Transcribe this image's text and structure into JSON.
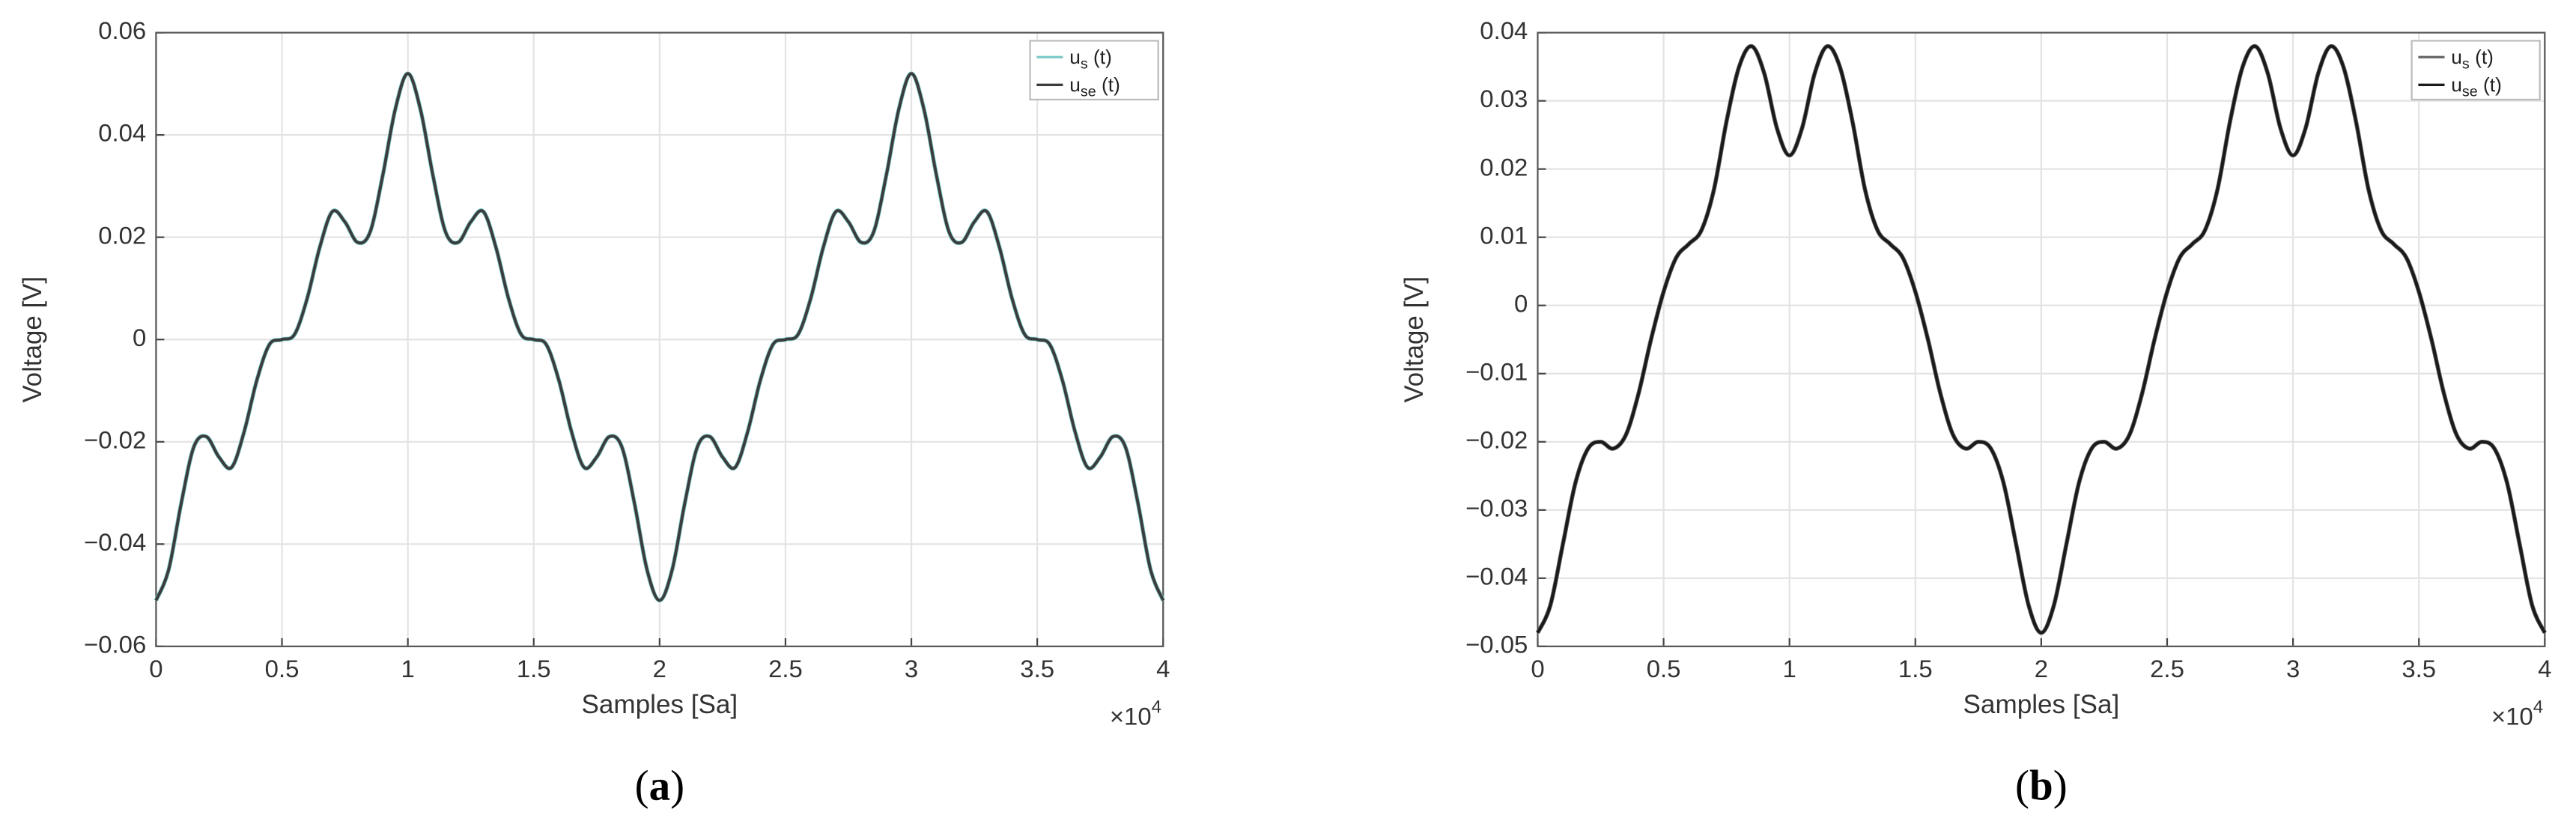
{
  "chart_data": [
    {
      "type": "line",
      "panel_label": "(a)",
      "xlabel": "Samples [Sa]",
      "ylabel": "Voltage [V]",
      "x_multiplier": "×104",
      "x": [
        0,
        500,
        1000,
        1500,
        2000,
        2500,
        3000,
        3500,
        4000,
        4500,
        5000,
        5500,
        6000,
        6500,
        7000,
        7500,
        8000,
        8500,
        9000,
        9500,
        10000,
        10500,
        11000,
        11500,
        12000,
        12500,
        13000,
        13500,
        14000,
        14500,
        15000,
        15500,
        16000,
        16500,
        17000,
        17500,
        18000,
        18500,
        19000,
        19500,
        20000,
        20500,
        21000,
        21500,
        22000,
        22500,
        23000,
        23500,
        24000,
        24500,
        25000,
        25500,
        26000,
        26500,
        27000,
        27500,
        28000,
        28500,
        29000,
        29500,
        30000,
        30500,
        31000,
        31500,
        32000,
        32500,
        33000,
        33500,
        34000,
        34500,
        35000,
        35500,
        36000,
        36500,
        37000,
        37500,
        38000,
        38500,
        39000,
        39500,
        40000
      ],
      "series": [
        {
          "name": "us (t)",
          "color": "#7cc8c8",
          "values": [
            -0.051,
            -0.045,
            -0.032,
            -0.021,
            -0.019,
            -0.023,
            -0.025,
            -0.018,
            -0.008,
            -0.001,
            0,
            0.001,
            0.008,
            0.018,
            0.025,
            0.023,
            0.019,
            0.021,
            0.032,
            0.045,
            0.052,
            0.045,
            0.032,
            0.021,
            0.019,
            0.023,
            0.025,
            0.018,
            0.008,
            0.001,
            0,
            -0.001,
            -0.008,
            -0.018,
            -0.025,
            -0.023,
            -0.019,
            -0.021,
            -0.032,
            -0.045,
            -0.051,
            -0.045,
            -0.032,
            -0.021,
            -0.019,
            -0.023,
            -0.025,
            -0.018,
            -0.008,
            -0.001,
            0,
            0.001,
            0.008,
            0.018,
            0.025,
            0.023,
            0.019,
            0.021,
            0.032,
            0.045,
            0.052,
            0.045,
            0.032,
            0.021,
            0.019,
            0.023,
            0.025,
            0.018,
            0.008,
            0.001,
            0,
            -0.001,
            -0.008,
            -0.018,
            -0.025,
            -0.023,
            -0.019,
            -0.021,
            -0.032,
            -0.045,
            -0.051
          ]
        },
        {
          "name": "use (t)",
          "color": "#3c3c3c",
          "values": [
            -0.051,
            -0.045,
            -0.032,
            -0.021,
            -0.019,
            -0.023,
            -0.025,
            -0.018,
            -0.008,
            -0.001,
            0,
            0.001,
            0.008,
            0.018,
            0.025,
            0.023,
            0.019,
            0.021,
            0.032,
            0.045,
            0.052,
            0.045,
            0.032,
            0.021,
            0.019,
            0.023,
            0.025,
            0.018,
            0.008,
            0.001,
            0,
            -0.001,
            -0.008,
            -0.018,
            -0.025,
            -0.023,
            -0.019,
            -0.021,
            -0.032,
            -0.045,
            -0.051,
            -0.045,
            -0.032,
            -0.021,
            -0.019,
            -0.023,
            -0.025,
            -0.018,
            -0.008,
            -0.001,
            0,
            0.001,
            0.008,
            0.018,
            0.025,
            0.023,
            0.019,
            0.021,
            0.032,
            0.045,
            0.052,
            0.045,
            0.032,
            0.021,
            0.019,
            0.023,
            0.025,
            0.018,
            0.008,
            0.001,
            0,
            -0.001,
            -0.008,
            -0.018,
            -0.025,
            -0.023,
            -0.019,
            -0.021,
            -0.032,
            -0.045,
            -0.051
          ]
        }
      ],
      "xlim": [
        0,
        40000
      ],
      "xticks": [
        0,
        {
          "value": 5000,
          "label": "0.5"
        },
        {
          "value": 10000,
          "label": "1"
        },
        {
          "value": 15000,
          "label": "1.5"
        },
        {
          "value": 20000,
          "label": "2"
        },
        {
          "value": 25000,
          "label": "2.5"
        },
        {
          "value": 30000,
          "label": "3"
        },
        {
          "value": 35000,
          "label": "3.5"
        },
        {
          "value": 40000,
          "label": "4"
        }
      ],
      "ylim": [
        -0.06,
        0.06
      ],
      "yticks": [
        {
          "value": -0.06,
          "label": "−0.06"
        },
        {
          "value": -0.04,
          "label": "−0.04"
        },
        {
          "value": -0.02,
          "label": "−0.02"
        },
        0,
        0.02,
        0.04,
        0.06
      ],
      "grid": true,
      "legend": "upper right"
    },
    {
      "type": "line",
      "panel_label": "(b)",
      "xlabel": "Samples [Sa]",
      "ylabel": "Voltage [V]",
      "x_multiplier": "×104",
      "x": [
        0,
        500,
        1000,
        1500,
        2000,
        2500,
        3000,
        3500,
        4000,
        4500,
        5000,
        5500,
        6000,
        6500,
        7000,
        7500,
        8000,
        8500,
        9000,
        9500,
        10000,
        10500,
        11000,
        11500,
        12000,
        12500,
        13000,
        13500,
        14000,
        14500,
        15000,
        15500,
        16000,
        16500,
        17000,
        17500,
        18000,
        18500,
        19000,
        19500,
        20000,
        20500,
        21000,
        21500,
        22000,
        22500,
        23000,
        23500,
        24000,
        24500,
        25000,
        25500,
        26000,
        26500,
        27000,
        27500,
        28000,
        28500,
        29000,
        29500,
        30000,
        30500,
        31000,
        31500,
        32000,
        32500,
        33000,
        33500,
        34000,
        34500,
        35000,
        35500,
        36000,
        36500,
        37000,
        37500,
        38000,
        38500,
        39000,
        39500,
        40000
      ],
      "series": [
        {
          "name": "us (t)",
          "color": "#666666",
          "values": [
            -0.048,
            -0.044,
            -0.035,
            -0.026,
            -0.021,
            -0.02,
            -0.021,
            -0.019,
            -0.013,
            -0.005,
            0.002,
            0.007,
            0.009,
            0.011,
            0.017,
            0.027,
            0.035,
            0.038,
            0.034,
            0.026,
            0.022,
            0.026,
            0.034,
            0.038,
            0.035,
            0.027,
            0.017,
            0.011,
            0.009,
            0.007,
            0.002,
            -0.005,
            -0.013,
            -0.019,
            -0.021,
            -0.02,
            -0.021,
            -0.026,
            -0.035,
            -0.044,
            -0.048,
            -0.044,
            -0.035,
            -0.026,
            -0.021,
            -0.02,
            -0.021,
            -0.019,
            -0.013,
            -0.005,
            0.002,
            0.007,
            0.009,
            0.011,
            0.017,
            0.027,
            0.035,
            0.038,
            0.034,
            0.026,
            0.022,
            0.026,
            0.034,
            0.038,
            0.035,
            0.027,
            0.017,
            0.011,
            0.009,
            0.007,
            0.002,
            -0.005,
            -0.013,
            -0.019,
            -0.021,
            -0.02,
            -0.021,
            -0.026,
            -0.035,
            -0.044,
            -0.048
          ]
        },
        {
          "name": "use (t)",
          "color": "#1a1a1a",
          "values": [
            -0.048,
            -0.044,
            -0.035,
            -0.026,
            -0.021,
            -0.02,
            -0.021,
            -0.019,
            -0.013,
            -0.005,
            0.002,
            0.007,
            0.009,
            0.011,
            0.017,
            0.027,
            0.035,
            0.038,
            0.034,
            0.026,
            0.022,
            0.026,
            0.034,
            0.038,
            0.035,
            0.027,
            0.017,
            0.011,
            0.009,
            0.007,
            0.002,
            -0.005,
            -0.013,
            -0.019,
            -0.021,
            -0.02,
            -0.021,
            -0.026,
            -0.035,
            -0.044,
            -0.048,
            -0.044,
            -0.035,
            -0.026,
            -0.021,
            -0.02,
            -0.021,
            -0.019,
            -0.013,
            -0.005,
            0.002,
            0.007,
            0.009,
            0.011,
            0.017,
            0.027,
            0.035,
            0.038,
            0.034,
            0.026,
            0.022,
            0.026,
            0.034,
            0.038,
            0.035,
            0.027,
            0.017,
            0.011,
            0.009,
            0.007,
            0.002,
            -0.005,
            -0.013,
            -0.019,
            -0.021,
            -0.02,
            -0.021,
            -0.026,
            -0.035,
            -0.044,
            -0.048
          ]
        }
      ],
      "xlim": [
        0,
        40000
      ],
      "xticks": [
        0,
        {
          "value": 5000,
          "label": "0.5"
        },
        {
          "value": 10000,
          "label": "1"
        },
        {
          "value": 15000,
          "label": "1.5"
        },
        {
          "value": 20000,
          "label": "2"
        },
        {
          "value": 25000,
          "label": "2.5"
        },
        {
          "value": 30000,
          "label": "3"
        },
        {
          "value": 35000,
          "label": "3.5"
        },
        {
          "value": 40000,
          "label": "4"
        }
      ],
      "ylim": [
        -0.05,
        0.04
      ],
      "yticks": [
        {
          "value": -0.05,
          "label": "−0.05"
        },
        {
          "value": -0.04,
          "label": "−0.04"
        },
        {
          "value": -0.03,
          "label": "−0.03"
        },
        {
          "value": -0.02,
          "label": "−0.02"
        },
        {
          "value": -0.01,
          "label": "−0.01"
        },
        0,
        0.01,
        0.02,
        0.03,
        0.04
      ],
      "grid": true,
      "legend": "upper right"
    }
  ]
}
